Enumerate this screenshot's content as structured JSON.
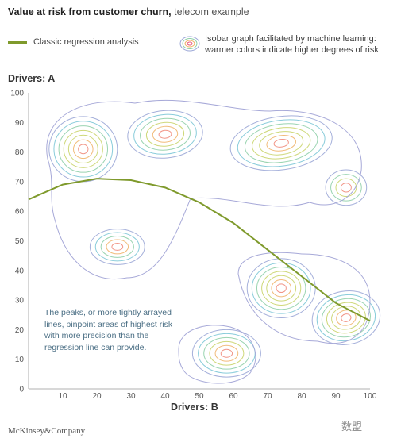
{
  "header": {
    "title_bold": "Value at risk from customer churn,",
    "title_rest": " telecom example"
  },
  "legend": {
    "regression_label": "Classic regression analysis",
    "isobar_label": "Isobar graph facilitated by machine learning: warmer colors indicate higher degrees of risk",
    "regression_color": "#7f9a2c"
  },
  "annotation": "The peaks, or more tightly arrayed lines, pinpoint areas of highest risk with more precision than the regression line can provide.",
  "footer": {
    "brand": "McKinsey&Company",
    "watermark": "数盟"
  },
  "chart_data": {
    "type": "contour",
    "ylabel": "Drivers: A",
    "xlabel": "Drivers: B",
    "xlim": [
      0,
      100
    ],
    "ylim": [
      0,
      100
    ],
    "xticks": [
      10,
      20,
      30,
      40,
      50,
      60,
      70,
      80,
      90,
      100
    ],
    "yticks": [
      0,
      10,
      20,
      30,
      40,
      50,
      60,
      70,
      80,
      90,
      100
    ],
    "regression_line": {
      "x": [
        0,
        10,
        20,
        30,
        40,
        50,
        60,
        70,
        80,
        90,
        100
      ],
      "y": [
        64,
        69,
        71,
        70.5,
        68,
        63,
        56,
        47,
        38,
        29,
        23
      ]
    },
    "risk_peaks": [
      {
        "x": 16,
        "y": 81
      },
      {
        "x": 40,
        "y": 86
      },
      {
        "x": 74,
        "y": 83
      },
      {
        "x": 93,
        "y": 68
      },
      {
        "x": 26,
        "y": 48
      },
      {
        "x": 74,
        "y": 34
      },
      {
        "x": 93,
        "y": 24
      },
      {
        "x": 58,
        "y": 12
      }
    ],
    "color_scale": [
      "#9aa6d6",
      "#7cc6d6",
      "#8fcfa8",
      "#c9d46a",
      "#f0b46a",
      "#f08a7a",
      "#e8557a"
    ]
  }
}
